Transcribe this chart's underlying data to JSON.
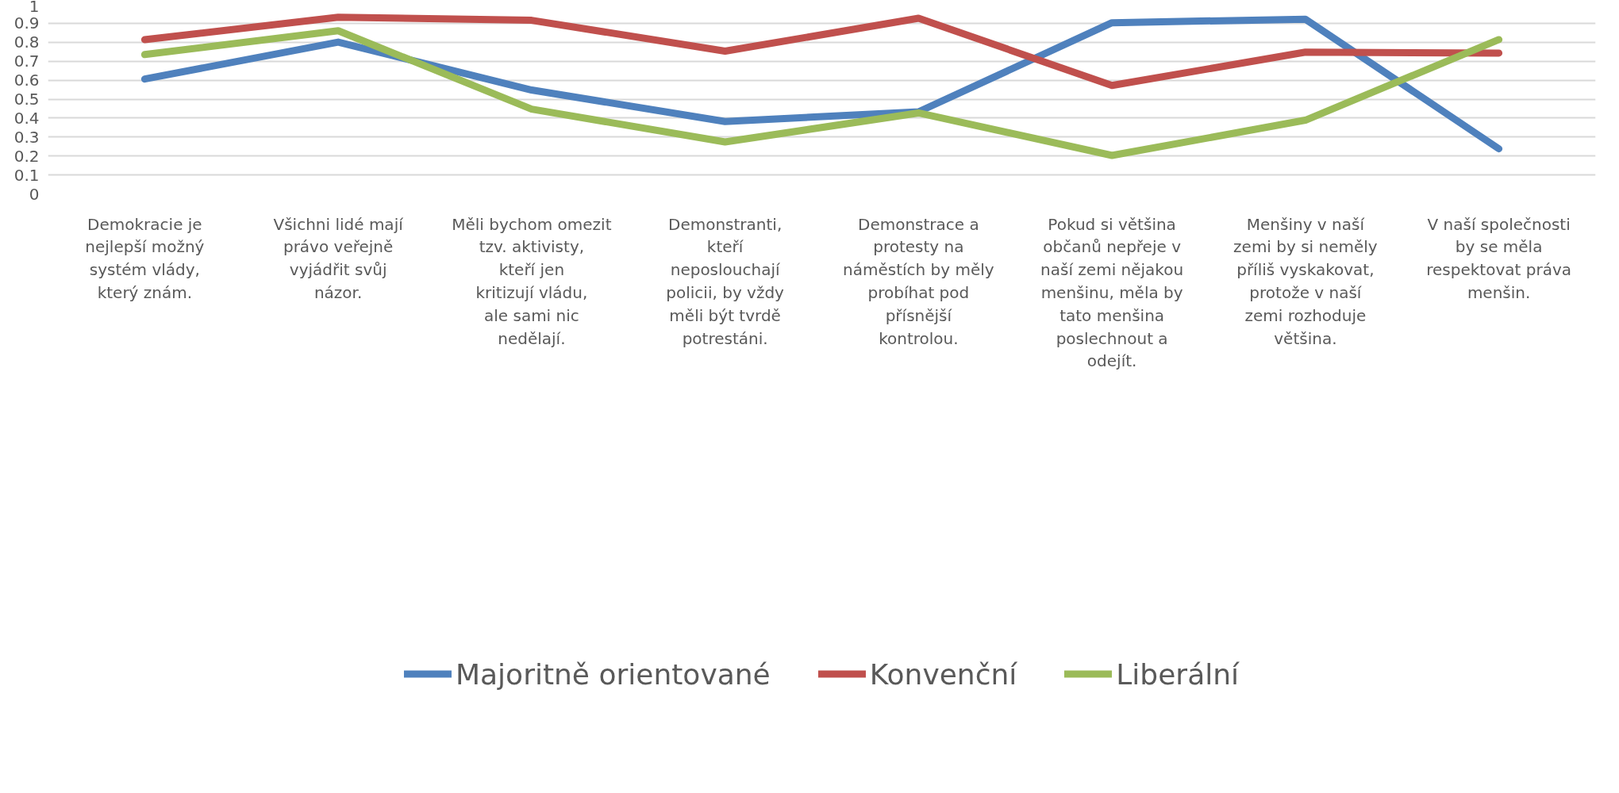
{
  "chart_data": {
    "type": "line",
    "categories": [
      "Demokracie je nejlepší možný systém vlády, který znám.",
      "Všichni lidé mají právo veřejně vyjádřit svůj názor.",
      "Měli bychom omezit tzv. aktivisty, kteří jen kritizují vládu, ale sami nic nedělají.",
      "Demonstranti, kteří neposlouchají policii, by vždy měli být tvrdě potrestáni.",
      "Demonstrace a protesty na náměstích by měly probíhat pod přísnější kontrolou.",
      "Pokud si většina občanů nepřeje v naší zemi nějakou menšinu, měla by tato menšina poslechnout a odejít.",
      "Menšiny v naší zemi by si neměly příliš vyskakovat, protože v naší zemi rozhoduje většina.",
      "V naší společnosti by se měla respektovat práva menšin."
    ],
    "series": [
      {
        "name": "Majoritně orientované",
        "color": "#4f81bd",
        "values": [
          0.606,
          0.801,
          0.548,
          0.382,
          0.433,
          0.903,
          0.922,
          0.238
        ]
      },
      {
        "name": "Konvenční",
        "color": "#c0504d",
        "values": [
          0.814,
          0.932,
          0.916,
          0.753,
          0.927,
          0.572,
          0.748,
          0.743
        ]
      },
      {
        "name": "Liberální",
        "color": "#9bbb59",
        "values": [
          0.735,
          0.861,
          0.447,
          0.274,
          0.427,
          0.203,
          0.389,
          0.814
        ]
      }
    ],
    "ylim": [
      0,
      1
    ],
    "yticks": [
      0,
      0.1,
      0.2,
      0.3,
      0.4,
      0.5,
      0.6,
      0.7,
      0.8,
      0.9,
      1
    ],
    "grid": "y",
    "legend": "bottom",
    "marker": "none",
    "line_style": "solid"
  }
}
